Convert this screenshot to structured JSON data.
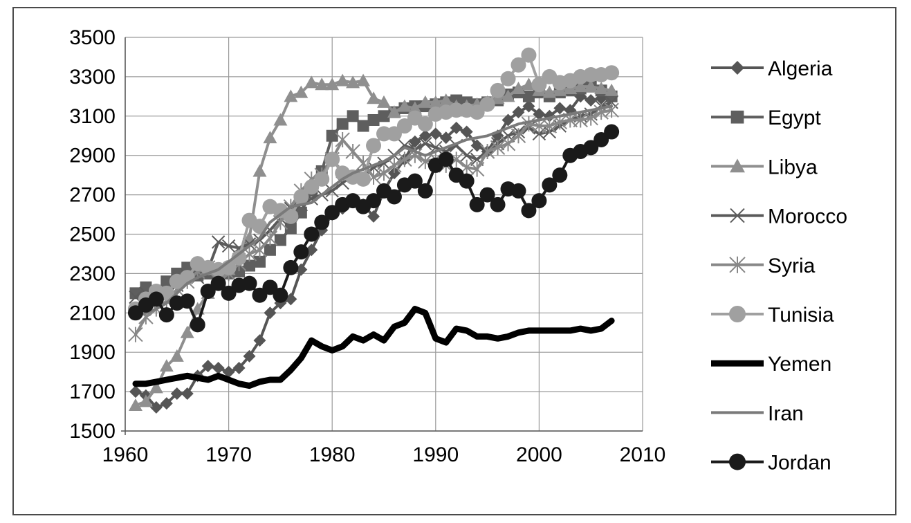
{
  "chart_data": {
    "type": "line",
    "title": "",
    "xlabel": "",
    "ylabel": "",
    "xlim": [
      1960,
      2010
    ],
    "ylim": [
      1500,
      3500
    ],
    "xticks": [
      1960,
      1970,
      1980,
      1990,
      2000,
      2010
    ],
    "yticks": [
      1500,
      1700,
      1900,
      2100,
      2300,
      2500,
      2700,
      2900,
      3100,
      3300,
      3500
    ],
    "grid": true,
    "legend_position": "right",
    "series": [
      {
        "name": "Algeria",
        "color": "#555555",
        "marker": "diamond",
        "x": [
          1961,
          1962,
          1963,
          1964,
          1965,
          1966,
          1967,
          1968,
          1969,
          1970,
          1971,
          1972,
          1973,
          1974,
          1975,
          1976,
          1977,
          1978,
          1979,
          1980,
          1981,
          1982,
          1983,
          1984,
          1985,
          1986,
          1987,
          1988,
          1989,
          1990,
          1991,
          1992,
          1993,
          1994,
          1995,
          1996,
          1997,
          1998,
          1999,
          2000,
          2001,
          2002,
          2003,
          2004,
          2005,
          2006,
          2007
        ],
        "y": [
          1700,
          1680,
          1620,
          1640,
          1690,
          1690,
          1780,
          1830,
          1820,
          1800,
          1820,
          1880,
          1960,
          2100,
          2150,
          2170,
          2320,
          2420,
          2520,
          2600,
          2630,
          2670,
          2650,
          2590,
          2720,
          2810,
          2880,
          2970,
          3000,
          3010,
          2990,
          3040,
          3020,
          2950,
          2920,
          3000,
          3080,
          3120,
          3150,
          3110,
          3100,
          3140,
          3130,
          3200,
          3180,
          3190,
          3200
        ]
      },
      {
        "name": "Egypt",
        "color": "#5e5e5e",
        "marker": "square",
        "x": [
          1961,
          1962,
          1963,
          1964,
          1965,
          1966,
          1967,
          1968,
          1969,
          1970,
          1971,
          1972,
          1973,
          1974,
          1975,
          1976,
          1977,
          1978,
          1979,
          1980,
          1981,
          1982,
          1983,
          1984,
          1985,
          1986,
          1987,
          1988,
          1989,
          1990,
          1991,
          1992,
          1993,
          1994,
          1995,
          1996,
          1997,
          1998,
          1999,
          2000,
          2001,
          2002,
          2003,
          2004,
          2005,
          2006,
          2007
        ],
        "y": [
          2200,
          2230,
          2210,
          2260,
          2300,
          2330,
          2290,
          2300,
          2280,
          2300,
          2310,
          2340,
          2360,
          2420,
          2470,
          2530,
          2610,
          2720,
          2820,
          3000,
          3060,
          3100,
          3050,
          3080,
          3100,
          3120,
          3140,
          3150,
          3150,
          3160,
          3170,
          3180,
          3170,
          3160,
          3170,
          3180,
          3210,
          3220,
          3200,
          3220,
          3200,
          3220,
          3230,
          3240,
          3250,
          3230,
          3200
        ]
      },
      {
        "name": "Libya",
        "color": "#8f8f8f",
        "marker": "triangle",
        "x": [
          1961,
          1962,
          1963,
          1964,
          1965,
          1966,
          1967,
          1968,
          1969,
          1970,
          1971,
          1972,
          1973,
          1974,
          1975,
          1976,
          1977,
          1978,
          1979,
          1980,
          1981,
          1982,
          1983,
          1984,
          1985,
          1986,
          1987,
          1988,
          1989,
          1990,
          1991,
          1992,
          1993,
          1994,
          1995,
          1996,
          1997,
          1998,
          1999,
          2000,
          2001,
          2002,
          2003,
          2004,
          2005,
          2006,
          2007
        ],
        "y": [
          1630,
          1650,
          1720,
          1830,
          1880,
          2000,
          2120,
          2200,
          2270,
          2320,
          2400,
          2480,
          2820,
          2990,
          3080,
          3200,
          3220,
          3270,
          3260,
          3260,
          3280,
          3270,
          3280,
          3190,
          3170,
          3120,
          3150,
          3140,
          3170,
          3170,
          3180,
          3150,
          3150,
          3160,
          3170,
          3190,
          3200,
          3240,
          3260,
          3230,
          3220,
          3230,
          3240,
          3250,
          3250,
          3240,
          3230
        ]
      },
      {
        "name": "Morocco",
        "color": "#5a5a5a",
        "marker": "x",
        "x": [
          1961,
          1962,
          1963,
          1964,
          1965,
          1966,
          1967,
          1968,
          1969,
          1970,
          1971,
          1972,
          1973,
          1974,
          1975,
          1976,
          1977,
          1978,
          1979,
          1980,
          1981,
          1982,
          1983,
          1984,
          1985,
          1986,
          1987,
          1988,
          1989,
          1990,
          1991,
          1992,
          1993,
          1994,
          1995,
          1996,
          1997,
          1998,
          1999,
          2000,
          2001,
          2002,
          2003,
          2004,
          2005,
          2006,
          2007
        ],
        "y": [
          2180,
          2200,
          2180,
          2210,
          2240,
          2290,
          2280,
          2320,
          2460,
          2440,
          2430,
          2450,
          2470,
          2520,
          2580,
          2630,
          2650,
          2680,
          2700,
          2720,
          2760,
          2800,
          2790,
          2840,
          2860,
          2900,
          2950,
          2930,
          2960,
          2940,
          2920,
          2950,
          2900,
          2880,
          2920,
          2960,
          3000,
          3020,
          3040,
          3010,
          3020,
          3050,
          3080,
          3100,
          3110,
          3150,
          3170
        ]
      },
      {
        "name": "Syria",
        "color": "#888888",
        "marker": "star",
        "x": [
          1961,
          1962,
          1963,
          1964,
          1965,
          1966,
          1967,
          1968,
          1969,
          1970,
          1971,
          1972,
          1973,
          1974,
          1975,
          1976,
          1977,
          1978,
          1979,
          1980,
          1981,
          1982,
          1983,
          1984,
          1985,
          1986,
          1987,
          1988,
          1989,
          1990,
          1991,
          1992,
          1993,
          1994,
          1995,
          1996,
          1997,
          1998,
          1999,
          2000,
          2001,
          2002,
          2003,
          2004,
          2005,
          2006,
          2007
        ],
        "y": [
          1990,
          2080,
          2120,
          2160,
          2220,
          2260,
          2310,
          2330,
          2260,
          2300,
          2350,
          2400,
          2420,
          2480,
          2560,
          2640,
          2720,
          2780,
          2800,
          2880,
          2980,
          2920,
          2860,
          2790,
          2810,
          2850,
          2880,
          2900,
          2870,
          2880,
          2850,
          2880,
          2840,
          2830,
          2920,
          2940,
          2960,
          3000,
          3060,
          3050,
          3050,
          3070,
          3080,
          3080,
          3090,
          3120,
          3130
        ]
      },
      {
        "name": "Tunisia",
        "color": "#a0a0a0",
        "marker": "circle",
        "x": [
          1961,
          1962,
          1963,
          1964,
          1965,
          1966,
          1967,
          1968,
          1969,
          1970,
          1971,
          1972,
          1973,
          1974,
          1975,
          1976,
          1977,
          1978,
          1979,
          1980,
          1981,
          1982,
          1983,
          1984,
          1985,
          1986,
          1987,
          1988,
          1989,
          1990,
          1991,
          1992,
          1993,
          1994,
          1995,
          1996,
          1997,
          1998,
          1999,
          2000,
          2001,
          2002,
          2003,
          2004,
          2005,
          2006,
          2007
        ],
        "y": [
          2120,
          2170,
          2210,
          2200,
          2260,
          2280,
          2350,
          2330,
          2320,
          2330,
          2380,
          2570,
          2540,
          2640,
          2620,
          2590,
          2690,
          2740,
          2780,
          2880,
          2810,
          2790,
          2780,
          2950,
          3010,
          3010,
          3050,
          3090,
          3060,
          3110,
          3120,
          3130,
          3130,
          3120,
          3160,
          3230,
          3290,
          3360,
          3410,
          3260,
          3300,
          3270,
          3280,
          3300,
          3310,
          3310,
          3320
        ]
      },
      {
        "name": "Yemen",
        "color": "#000000",
        "marker": "none",
        "x": [
          1961,
          1962,
          1963,
          1964,
          1965,
          1966,
          1967,
          1968,
          1969,
          1970,
          1971,
          1972,
          1973,
          1974,
          1975,
          1976,
          1977,
          1978,
          1979,
          1980,
          1981,
          1982,
          1983,
          1984,
          1985,
          1986,
          1987,
          1988,
          1989,
          1990,
          1991,
          1992,
          1993,
          1994,
          1995,
          1996,
          1997,
          1998,
          1999,
          2000,
          2001,
          2002,
          2003,
          2004,
          2005,
          2006,
          2007
        ],
        "y": [
          1740,
          1740,
          1750,
          1760,
          1770,
          1780,
          1770,
          1760,
          1780,
          1760,
          1740,
          1730,
          1750,
          1760,
          1760,
          1810,
          1870,
          1960,
          1930,
          1910,
          1930,
          1980,
          1960,
          1990,
          1960,
          2030,
          2050,
          2120,
          2100,
          1970,
          1950,
          2020,
          2010,
          1980,
          1980,
          1970,
          1980,
          2000,
          2010,
          2010,
          2010,
          2010,
          2010,
          2020,
          2010,
          2020,
          2060
        ]
      },
      {
        "name": "Iran",
        "color": "#7a7a7a",
        "marker": "none",
        "x": [
          1961,
          1962,
          1963,
          1964,
          1965,
          1966,
          1967,
          1968,
          1969,
          1970,
          1971,
          1972,
          1973,
          1974,
          1975,
          1976,
          1977,
          1978,
          1979,
          1980,
          1981,
          1982,
          1983,
          1984,
          1985,
          1986,
          1987,
          1988,
          1989,
          1990,
          1991,
          1992,
          1993,
          1994,
          1995,
          1996,
          1997,
          1998,
          1999,
          2000,
          2001,
          2002,
          2003,
          2004,
          2005,
          2006,
          2007
        ],
        "y": [
          2080,
          2100,
          2120,
          2150,
          2200,
          2250,
          2280,
          2300,
          2320,
          2360,
          2400,
          2440,
          2480,
          2560,
          2600,
          2640,
          2650,
          2660,
          2700,
          2740,
          2780,
          2810,
          2830,
          2850,
          2870,
          2900,
          2940,
          2920,
          2900,
          2920,
          2940,
          2960,
          2980,
          2990,
          3000,
          3020,
          3040,
          3060,
          3070,
          3080,
          3090,
          3100,
          3110,
          3120,
          3130,
          3140,
          3150
        ]
      },
      {
        "name": "Jordan",
        "color": "#1a1a1a",
        "marker": "circle",
        "x": [
          1961,
          1962,
          1963,
          1964,
          1965,
          1966,
          1967,
          1968,
          1969,
          1970,
          1971,
          1972,
          1973,
          1974,
          1975,
          1976,
          1977,
          1978,
          1979,
          1980,
          1981,
          1982,
          1983,
          1984,
          1985,
          1986,
          1987,
          1988,
          1989,
          1990,
          1991,
          1992,
          1993,
          1994,
          1995,
          1996,
          1997,
          1998,
          1999,
          2000,
          2001,
          2002,
          2003,
          2004,
          2005,
          2006,
          2007
        ],
        "y": [
          2100,
          2140,
          2170,
          2090,
          2150,
          2160,
          2040,
          2210,
          2250,
          2200,
          2240,
          2250,
          2190,
          2230,
          2190,
          2330,
          2410,
          2500,
          2560,
          2610,
          2650,
          2670,
          2640,
          2670,
          2720,
          2690,
          2750,
          2770,
          2720,
          2850,
          2880,
          2800,
          2770,
          2650,
          2700,
          2650,
          2730,
          2720,
          2620,
          2670,
          2750,
          2800,
          2900,
          2920,
          2940,
          2980,
          3020
        ]
      }
    ]
  }
}
